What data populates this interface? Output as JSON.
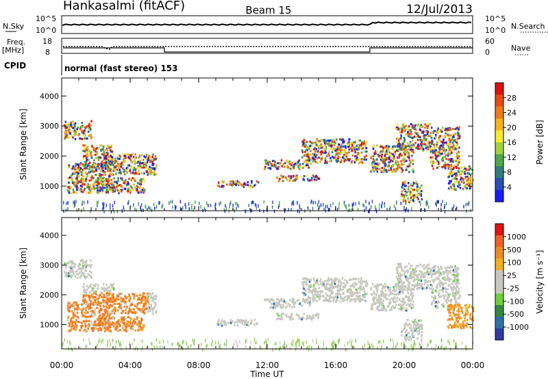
{
  "header": {
    "station": "Hankasalmi (fitACF)",
    "beam": "Beam 15",
    "date": "12/Jul/2013"
  },
  "top_panel": {
    "nsky_label": "N.Sky",
    "nsky_top": "10^5",
    "nsky_bot": "10^0",
    "nsearch_label": "N.Search",
    "nsearch_top": "10^5",
    "nsearch_bot": "10^0",
    "freq_label": "Freq.",
    "freq_unit": "[MHz]",
    "freq_top": "18",
    "freq_bot": "8",
    "nave_label": "Nave",
    "nave_top": "60",
    "nave_bot": "0",
    "cpid_label": "CPID",
    "cpid_value": "normal (fast stereo) 153"
  },
  "chart_data": [
    {
      "type": "heatmap",
      "name": "power",
      "ylabel": "Slant Range [km]",
      "ylim": [
        180,
        4600
      ],
      "yticks": [
        1000,
        2000,
        3000,
        4000
      ],
      "xlim": [
        0,
        24
      ],
      "colorbar_label": "Power [dB]",
      "colorbar_ticks": [
        "4",
        "8",
        "12",
        "16",
        "20",
        "24",
        "28"
      ],
      "colorbar_colors": [
        "#1c1cff",
        "#2a50b8",
        "#2f7e7e",
        "#4fa84a",
        "#9fd33b",
        "#f7ea2c",
        "#f7b21e",
        "#f07a15",
        "#e84a10",
        "#e01010"
      ]
    },
    {
      "type": "heatmap",
      "name": "velocity",
      "ylabel": "Slant Range [km]",
      "ylim": [
        180,
        4600
      ],
      "yticks": [
        1000,
        2000,
        3000,
        4000
      ],
      "xlim": [
        0,
        24
      ],
      "xticks": [
        "00:00",
        "04:00",
        "08:00",
        "12:00",
        "16:00",
        "20:00",
        "00:00"
      ],
      "xlabel": "Time UT",
      "colorbar_label": "Velocity [m s⁻¹]",
      "colorbar_ticks": [
        "1000",
        "500",
        "100",
        "25",
        "-25",
        "-100",
        "-500",
        "-1000"
      ],
      "colorbar_colors": [
        "#2e3aa8",
        "#2a73a8",
        "#2f8a3a",
        "#6ccf3a",
        "#c8c8c0",
        "#c8c8c0",
        "#f0b020",
        "#f08a20",
        "#f06020",
        "#e81010"
      ]
    }
  ]
}
